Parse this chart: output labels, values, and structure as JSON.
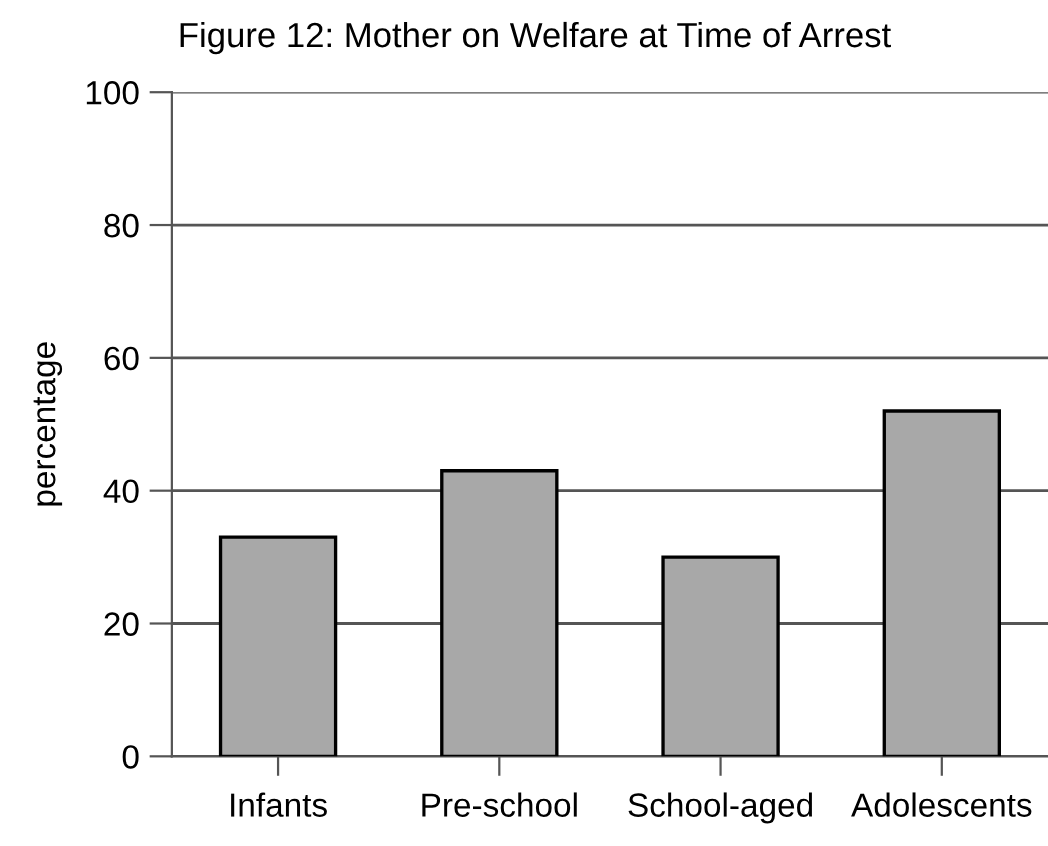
{
  "chart_data": {
    "type": "bar",
    "title": "Figure 12: Mother on Welfare at Time of Arrest",
    "ylabel": "percentage",
    "categories": [
      "Infants",
      "Pre-school",
      "School-aged",
      "Adolescents"
    ],
    "values": [
      33,
      43,
      30,
      52
    ],
    "color": "#a8a8a8",
    "ylim": [
      0,
      100
    ],
    "yticks": [
      0,
      20,
      40,
      60,
      80,
      100
    ],
    "grid": "y",
    "legend": false
  }
}
